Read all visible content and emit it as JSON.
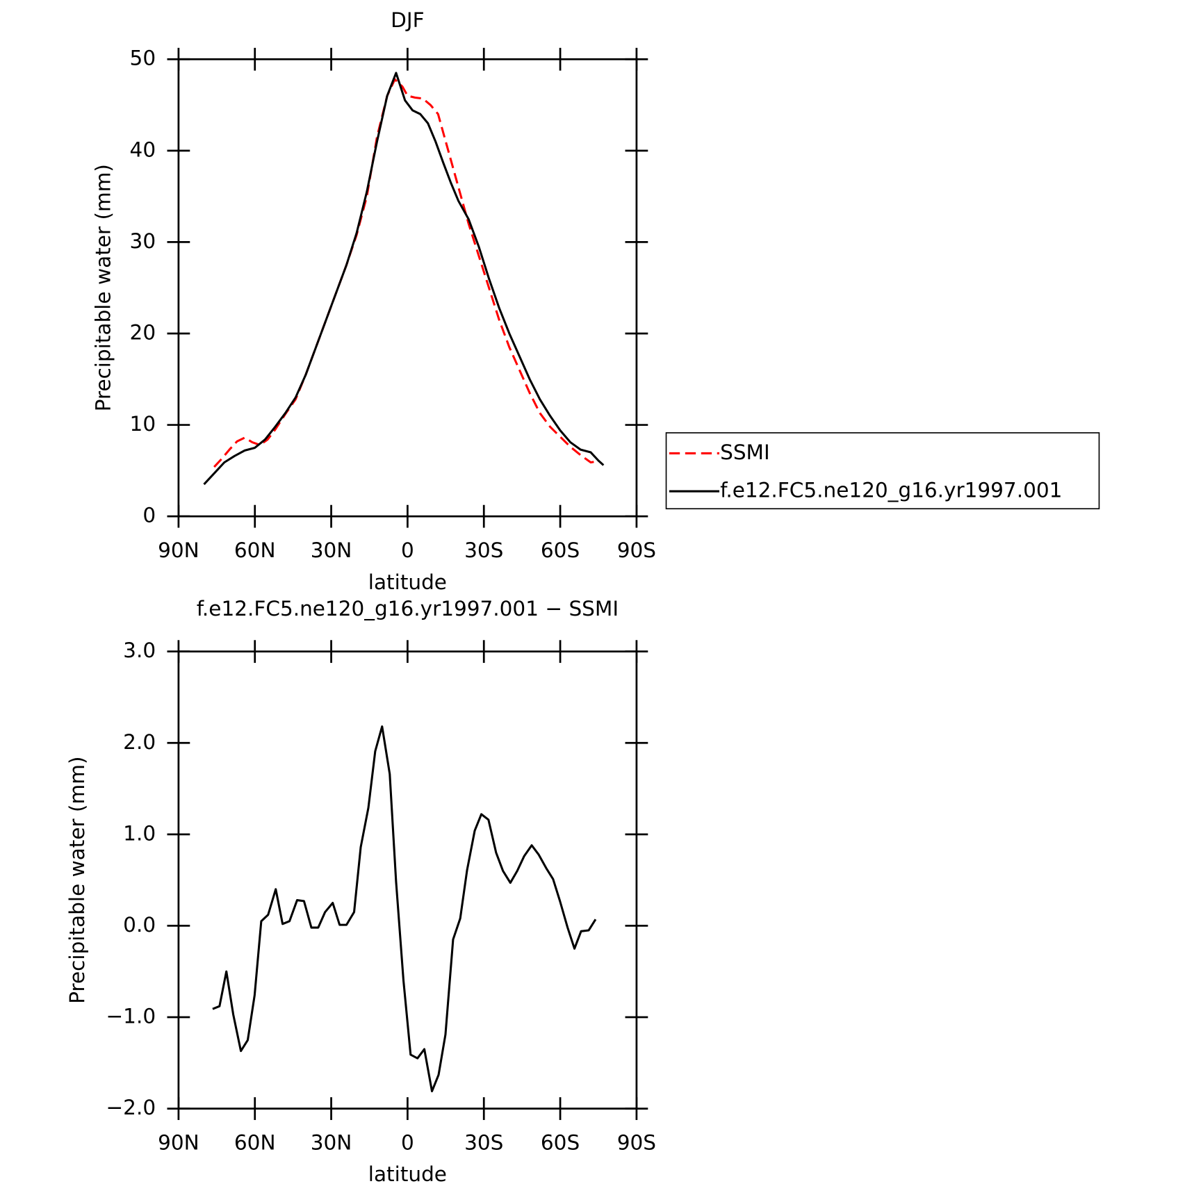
{
  "chart_data": [
    {
      "type": "line",
      "title": "DJF",
      "xlabel": "latitude",
      "ylabel": "Precipitable water (mm)",
      "xlim": [
        90,
        -90
      ],
      "xticks": [
        {
          "value": 90,
          "label": "90N"
        },
        {
          "value": 60,
          "label": "60N"
        },
        {
          "value": 30,
          "label": "30N"
        },
        0,
        {
          "value": -30,
          "label": "30S"
        },
        {
          "value": -60,
          "label": "60S"
        },
        {
          "value": -90,
          "label": "90S"
        }
      ],
      "ylim": [
        0,
        50
      ],
      "yticks": [
        0,
        10,
        20,
        30,
        40,
        50
      ],
      "legend": "right",
      "series": [
        {
          "name": "SSMI",
          "color": "#ff0000",
          "dashed": true,
          "x": [
            76,
            73,
            70,
            67,
            64,
            61,
            58,
            55,
            52,
            48,
            44,
            40,
            36,
            32,
            28,
            24,
            20,
            16,
            12,
            8,
            5,
            2,
            0,
            -3,
            -6,
            -9,
            -12,
            -15,
            -18,
            -21,
            -24,
            -28,
            -32,
            -36,
            -40,
            -44,
            -48,
            -52,
            -56,
            -60,
            -64,
            -68,
            -72,
            -74
          ],
          "values": [
            5.4,
            6.3,
            7.3,
            8.2,
            8.6,
            8.1,
            7.8,
            8.4,
            9.5,
            11.2,
            12.8,
            15.5,
            18.5,
            21.5,
            24.5,
            27.5,
            30.8,
            35.0,
            41.5,
            46.0,
            47.8,
            47.0,
            46.0,
            45.8,
            45.7,
            45.0,
            44.0,
            41.0,
            38.0,
            35.0,
            32.0,
            28.5,
            25.0,
            21.5,
            18.5,
            16.0,
            13.5,
            11.3,
            9.8,
            8.7,
            7.6,
            6.7,
            5.9,
            6.0
          ]
        },
        {
          "name": "f.e12.FC5.ne120_g16.yr1997.001",
          "color": "#000000",
          "dashed": false,
          "x": [
            80,
            76,
            72,
            68,
            64,
            60,
            56,
            52,
            48,
            44,
            40,
            36,
            32,
            28,
            24,
            20,
            16,
            12,
            8,
            4.5,
            1,
            -2,
            -5,
            -8,
            -11,
            -14,
            -17,
            -20,
            -24,
            -28,
            -32,
            -36,
            -40,
            -44,
            -48,
            -52,
            -56,
            -60,
            -64,
            -68,
            -72,
            -75,
            -77
          ],
          "values": [
            3.5,
            4.7,
            5.9,
            6.6,
            7.2,
            7.5,
            8.4,
            9.8,
            11.3,
            13.0,
            15.5,
            18.5,
            21.5,
            24.5,
            27.5,
            31.0,
            35.5,
            41.0,
            46.0,
            48.5,
            45.5,
            44.4,
            44.0,
            43.0,
            41.0,
            38.7,
            36.5,
            34.5,
            32.5,
            29.5,
            26.0,
            22.8,
            20.0,
            17.5,
            15.0,
            12.8,
            11.0,
            9.4,
            8.1,
            7.3,
            7.0,
            6.1,
            5.6
          ]
        }
      ]
    },
    {
      "type": "line",
      "title": "f.e12.FC5.ne120_g16.yr1997.001 − SSMI",
      "xlabel": "latitude",
      "ylabel": "Precipitable water (mm)",
      "xlim": [
        90,
        -90
      ],
      "xticks": [
        {
          "value": 90,
          "label": "90N"
        },
        {
          "value": 60,
          "label": "60N"
        },
        {
          "value": 30,
          "label": "30N"
        },
        0,
        {
          "value": -30,
          "label": "30S"
        },
        {
          "value": -60,
          "label": "60S"
        },
        {
          "value": -90,
          "label": "90S"
        }
      ],
      "ylim": [
        -2,
        3
      ],
      "yticks": [
        {
          "value": -2,
          "label": "−2.0"
        },
        {
          "value": -1,
          "label": "−1.0"
        },
        {
          "value": 0,
          "label": "0.0"
        },
        {
          "value": 1,
          "label": "1.0"
        },
        {
          "value": 2,
          "label": "2.0"
        },
        {
          "value": 3,
          "label": "3.0"
        }
      ],
      "color": "#000000",
      "x": [
        76.6,
        73.9,
        71.2,
        68.5,
        65.5,
        62.8,
        60.1,
        57.5,
        54.8,
        51.8,
        49.1,
        46.4,
        43.4,
        40.7,
        37.8,
        35.1,
        32.4,
        29.4,
        26.7,
        24.0,
        21.0,
        18.4,
        15.4,
        12.7,
        10.0,
        7.0,
        4.5,
        1.6,
        -1.2,
        -3.9,
        -6.6,
        -9.6,
        -12.2,
        -14.9,
        -17.9,
        -20.7,
        -23.4,
        -26.4,
        -29.0,
        -31.8,
        -34.8,
        -37.5,
        -40.4,
        -43.1,
        -45.8,
        -48.8,
        -51.5,
        -54.5,
        -57.2,
        -59.9,
        -62.9,
        -65.6,
        -68.2,
        -71.2,
        -73.9
      ],
      "values": [
        -0.91,
        -0.88,
        -0.5,
        -0.97,
        -1.37,
        -1.25,
        -0.76,
        0.05,
        0.12,
        0.4,
        0.02,
        0.05,
        0.28,
        0.27,
        -0.02,
        -0.02,
        0.15,
        0.25,
        0.01,
        0.01,
        0.15,
        0.86,
        1.29,
        1.91,
        2.18,
        1.66,
        0.48,
        -0.6,
        -1.41,
        -1.45,
        -1.35,
        -1.81,
        -1.63,
        -1.19,
        -0.15,
        0.08,
        0.61,
        1.04,
        1.22,
        1.16,
        0.8,
        0.6,
        0.47,
        0.6,
        0.76,
        0.88,
        0.78,
        0.63,
        0.51,
        0.27,
        -0.02,
        -0.25,
        -0.06,
        -0.05,
        0.07
      ]
    }
  ]
}
